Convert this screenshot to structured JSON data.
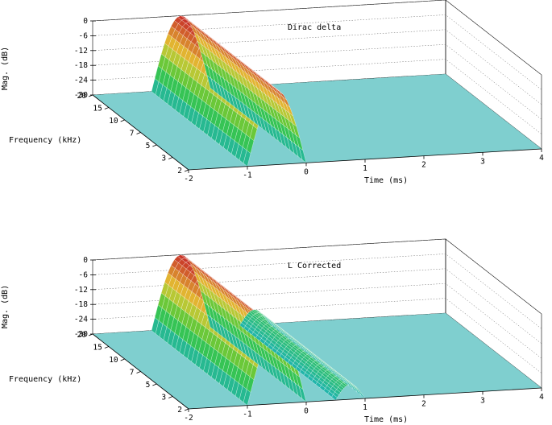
{
  "chart_data": [
    {
      "type": "surface",
      "title": "Dirac delta",
      "xlabel": "Time (ms)",
      "ylabel": "Frequency (kHz)",
      "zlabel": "Mag. (dB)",
      "xlim": [
        -2,
        4
      ],
      "x_ticks": [
        "-2",
        "-1",
        "0",
        "1",
        "2",
        "3",
        "4"
      ],
      "y_ticks": [
        "2",
        "3",
        "5",
        "7",
        "10",
        "15",
        "20"
      ],
      "z_ticks": [
        "0",
        "-6",
        "-12",
        "-18",
        "-24",
        "-30"
      ],
      "zlim": [
        -30,
        0
      ],
      "floor_db": -30,
      "ridges": [
        {
          "t_start": -1.0,
          "t_end": 0.0,
          "peak_db": 0,
          "floor_db": -30
        }
      ],
      "colors": {
        "low": "#1fb4b0",
        "mid": "#3cc83c",
        "high_mid": "#e6c832",
        "high": "#c83228",
        "floor": "#7fcfcf"
      }
    },
    {
      "type": "surface",
      "title": "L Corrected",
      "xlabel": "Time (ms)",
      "ylabel": "Frequency (kHz)",
      "zlabel": "Mag. (dB)",
      "xlim": [
        -2,
        4
      ],
      "x_ticks": [
        "-2",
        "-1",
        "0",
        "1",
        "2",
        "3",
        "4"
      ],
      "y_ticks": [
        "2",
        "3",
        "5",
        "7",
        "10",
        "15",
        "20"
      ],
      "z_ticks": [
        "0",
        "-6",
        "-12",
        "-18",
        "-24",
        "-30"
      ],
      "zlim": [
        -30,
        0
      ],
      "floor_db": -30,
      "ridges": [
        {
          "t_start": -1.0,
          "t_end": 0.0,
          "peak_db": 0,
          "floor_db": -30
        },
        {
          "t_start": 0.5,
          "t_end": 1.0,
          "peak_db": -24,
          "floor_db": -30
        }
      ],
      "colors": {
        "low": "#1fb4b0",
        "mid": "#3cc83c",
        "high_mid": "#e6c832",
        "high": "#c83228",
        "floor": "#7fcfcf"
      }
    }
  ]
}
